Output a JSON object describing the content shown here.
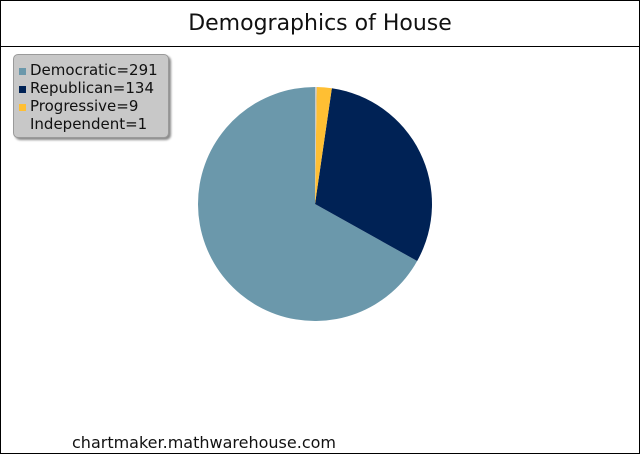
{
  "chart_data": {
    "type": "pie",
    "title": "Demographics of House",
    "categories": [
      "Democratic",
      "Republican",
      "Progressive",
      "Independent"
    ],
    "values": [
      291,
      134,
      9,
      1
    ],
    "colors": [
      "#6b98ab",
      "#002255",
      "#ffbf33",
      "#c8c8c8"
    ],
    "legend": {
      "placement": "top-left",
      "labels": [
        "Democratic=291",
        "Republican=134",
        "Progressive=9",
        "Independent=1"
      ]
    }
  },
  "footer": {
    "source": "chartmaker.mathwarehouse.com"
  }
}
